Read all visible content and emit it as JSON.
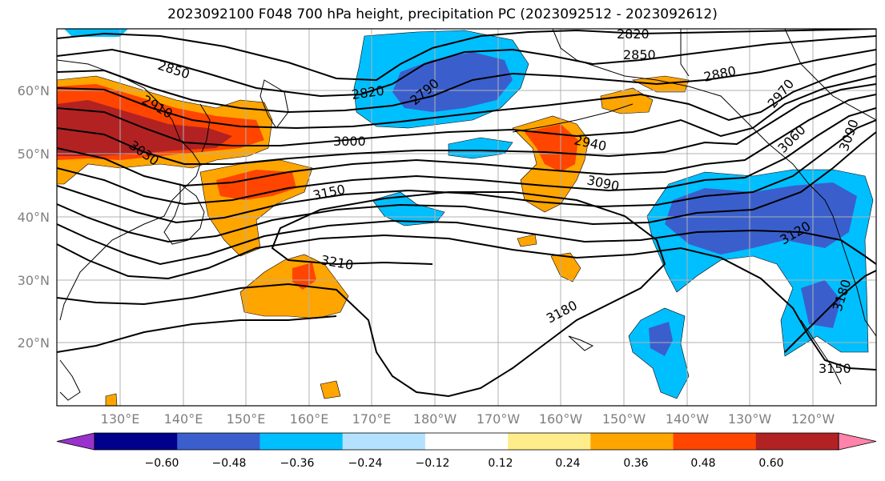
{
  "title": "2023092100 F048 700 hPa height, precipitation PC (2023092512 - 2023092612)",
  "map": {
    "lat_labels": [
      "60°N",
      "50°N",
      "40°N",
      "30°N",
      "20°N"
    ],
    "lon_labels": [
      "130°E",
      "140°E",
      "150°E",
      "160°E",
      "170°E",
      "180°W",
      "170°W",
      "160°W",
      "150°W",
      "140°W",
      "130°W",
      "120°W"
    ]
  },
  "contour_labels": [
    "2820",
    "2850",
    "2850",
    "2880",
    "2910",
    "2820",
    "2790",
    "3000",
    "2940",
    "2970",
    "3030",
    "3060",
    "3090",
    "3090",
    "3150",
    "3120",
    "3210",
    "3180",
    "3180",
    "3150"
  ],
  "colorbar": {
    "ticks": [
      "−0.60",
      "−0.48",
      "−0.36",
      "−0.24",
      "−0.12",
      "0.12",
      "0.24",
      "0.36",
      "0.48",
      "0.60"
    ],
    "colors": [
      "#9932cc",
      "#00008b",
      "#3a5fcd",
      "#00bfff",
      "#b2e2ff",
      "#ffffff",
      "#ffec8b",
      "#ffa500",
      "#ff4500",
      "#b22222",
      "#ff83aa"
    ]
  }
}
